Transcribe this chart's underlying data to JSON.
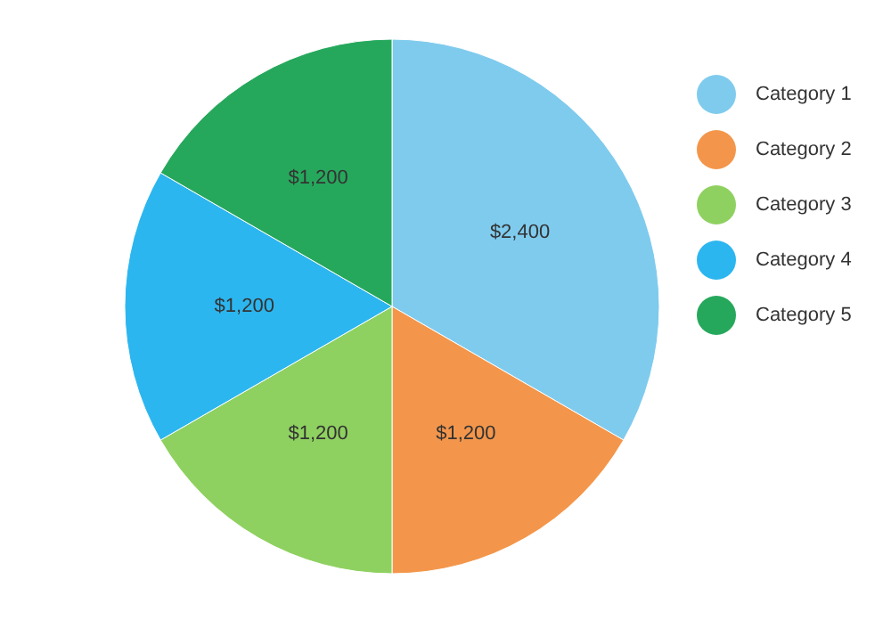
{
  "chart_data": {
    "type": "pie",
    "categories": [
      "Category 1",
      "Category 2",
      "Category 3",
      "Category 4",
      "Category 5"
    ],
    "values": [
      2400,
      1200,
      1200,
      1200,
      1200
    ],
    "colors": [
      "#7fcbee",
      "#f3964b",
      "#8fd160",
      "#2cb6ef",
      "#26a85c"
    ],
    "value_labels": [
      "$2,400",
      "$1,200",
      "$1,200",
      "$1,200",
      "$1,200"
    ],
    "legend": "right"
  }
}
